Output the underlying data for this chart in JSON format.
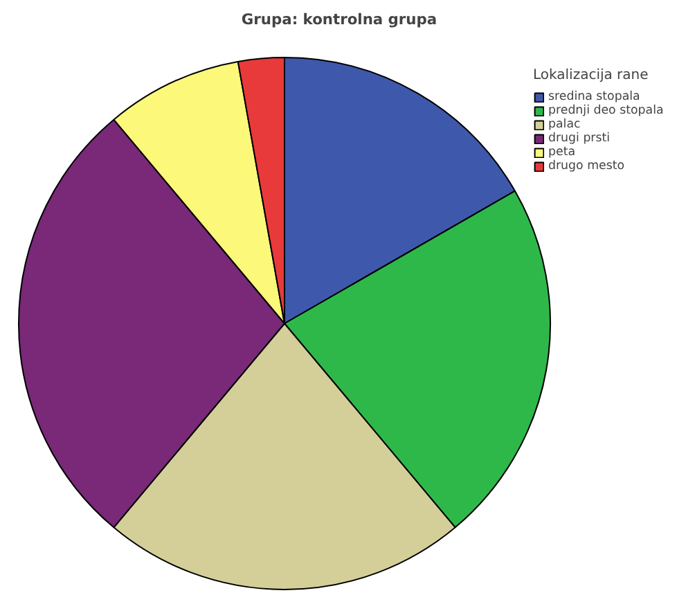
{
  "chart_data": {
    "type": "pie",
    "title": "Grupa: kontrolna grupa",
    "legend_title": "Lokalizacija rane",
    "legend": "top right",
    "categories": [
      "sredina stopala",
      "prednji deo stopala",
      "palac",
      "drugi prsti",
      "peta",
      "drugo mesto"
    ],
    "values": [
      16.7,
      22.2,
      22.2,
      27.8,
      8.3,
      2.8
    ],
    "colors": [
      "#3e58ac",
      "#2fb84a",
      "#d4cf98",
      "#7a2878",
      "#fbf87a",
      "#e83a3a"
    ]
  }
}
